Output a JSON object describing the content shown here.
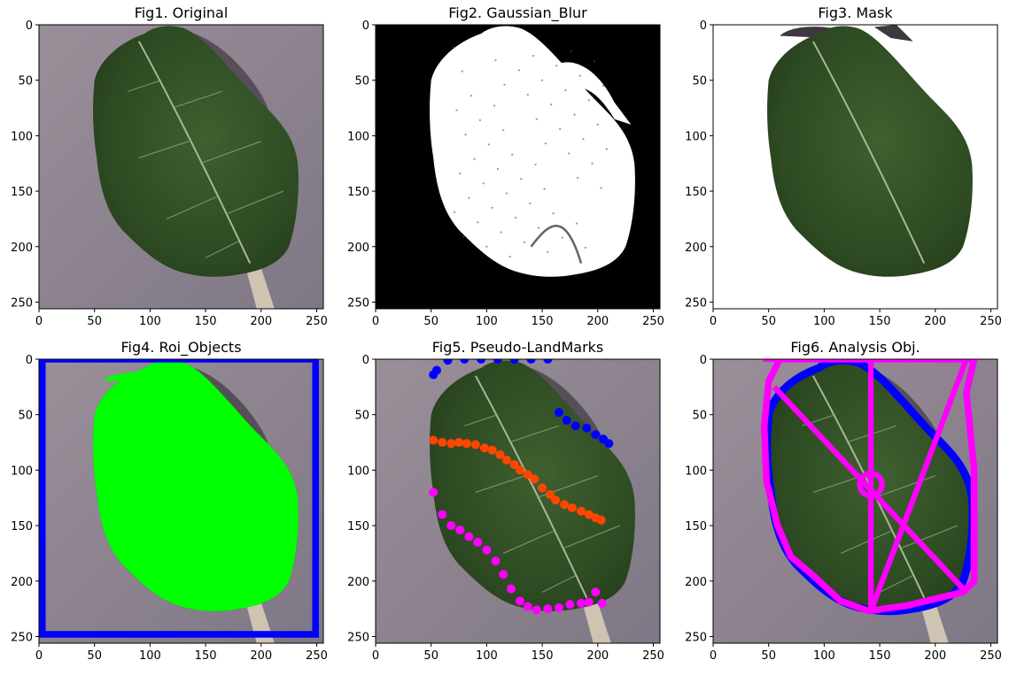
{
  "colors": {
    "leaf_dark": "#2f4a22",
    "leaf_mid": "#3f5f2c",
    "background_gray": "#8e8594",
    "stem": "#cfc3b2",
    "white": "#ffffff",
    "black": "#000000",
    "roi_green": "#00ff00",
    "roi_blue": "#0000ff",
    "landmark_blue": "#0000ff",
    "landmark_orange": "#ff4500",
    "landmark_magenta": "#ff00ff",
    "analysis_magenta": "#ff00ff"
  },
  "chart_data": [
    {
      "type": "image",
      "title": "Fig1. Original",
      "xlim": [
        0,
        256
      ],
      "ylim": [
        256,
        0
      ],
      "xticks": [
        0,
        50,
        100,
        150,
        200,
        250
      ],
      "yticks": [
        0,
        50,
        100,
        150,
        200,
        250
      ],
      "content": "photo"
    },
    {
      "type": "image",
      "title": "Fig2. Gaussian_Blur",
      "xlim": [
        0,
        256
      ],
      "ylim": [
        256,
        0
      ],
      "xticks": [
        0,
        50,
        100,
        150,
        200,
        250
      ],
      "yticks": [
        0,
        50,
        100,
        150,
        200,
        250
      ],
      "content": "binary"
    },
    {
      "type": "image",
      "title": "Fig3. Mask",
      "xlim": [
        0,
        256
      ],
      "ylim": [
        256,
        0
      ],
      "xticks": [
        0,
        50,
        100,
        150,
        200,
        250
      ],
      "yticks": [
        0,
        50,
        100,
        150,
        200,
        250
      ],
      "content": "masked"
    },
    {
      "type": "image",
      "title": "Fig4. Roi_Objects",
      "xlim": [
        0,
        256
      ],
      "ylim": [
        256,
        0
      ],
      "xticks": [
        0,
        50,
        100,
        150,
        200,
        250
      ],
      "yticks": [
        0,
        50,
        100,
        150,
        200,
        250
      ],
      "content": "roi",
      "roi_rect": [
        3,
        0,
        249,
        248
      ]
    },
    {
      "type": "image",
      "title": "Fig5. Pseudo-LandMarks",
      "xlim": [
        0,
        256
      ],
      "ylim": [
        256,
        0
      ],
      "xticks": [
        0,
        50,
        100,
        150,
        200,
        250
      ],
      "yticks": [
        0,
        50,
        100,
        150,
        200,
        250
      ],
      "content": "landmarks",
      "top_landmarks": [
        [
          52,
          14
        ],
        [
          55,
          10
        ],
        [
          65,
          1
        ],
        [
          80,
          0
        ],
        [
          95,
          0
        ],
        [
          110,
          0
        ],
        [
          125,
          0
        ],
        [
          140,
          0
        ],
        [
          155,
          0
        ],
        [
          165,
          48
        ],
        [
          172,
          55
        ],
        [
          180,
          60
        ],
        [
          190,
          62
        ],
        [
          198,
          68
        ],
        [
          205,
          72
        ],
        [
          210,
          76
        ]
      ],
      "middle_landmarks": [
        [
          52,
          73
        ],
        [
          60,
          75
        ],
        [
          68,
          76
        ],
        [
          75,
          75
        ],
        [
          82,
          76
        ],
        [
          90,
          77
        ],
        [
          98,
          80
        ],
        [
          105,
          82
        ],
        [
          112,
          86
        ],
        [
          118,
          91
        ],
        [
          125,
          95
        ],
        [
          130,
          100
        ],
        [
          137,
          104
        ],
        [
          143,
          108
        ],
        [
          150,
          116
        ],
        [
          157,
          122
        ],
        [
          162,
          127
        ],
        [
          170,
          131
        ],
        [
          177,
          134
        ],
        [
          185,
          137
        ],
        [
          192,
          140
        ],
        [
          198,
          143
        ],
        [
          203,
          145
        ]
      ],
      "bottom_landmarks": [
        [
          52,
          120
        ],
        [
          60,
          140
        ],
        [
          68,
          150
        ],
        [
          76,
          154
        ],
        [
          84,
          160
        ],
        [
          92,
          165
        ],
        [
          100,
          172
        ],
        [
          108,
          182
        ],
        [
          115,
          194
        ],
        [
          122,
          207
        ],
        [
          130,
          218
        ],
        [
          137,
          223
        ],
        [
          145,
          226
        ],
        [
          155,
          225
        ],
        [
          165,
          224
        ],
        [
          175,
          221
        ],
        [
          185,
          220
        ],
        [
          192,
          219
        ],
        [
          198,
          210
        ],
        [
          204,
          220
        ]
      ]
    },
    {
      "type": "image",
      "title": "Fig6. Analysis Obj.",
      "xlim": [
        0,
        256
      ],
      "ylim": [
        256,
        0
      ],
      "xticks": [
        0,
        50,
        100,
        150,
        200,
        250
      ],
      "yticks": [
        0,
        50,
        100,
        150,
        200,
        250
      ],
      "content": "analysis",
      "hull": [
        [
          60,
          0
        ],
        [
          235,
          0
        ],
        [
          228,
          30
        ],
        [
          235,
          100
        ],
        [
          235,
          200
        ],
        [
          225,
          210
        ],
        [
          175,
          222
        ],
        [
          140,
          227
        ],
        [
          115,
          218
        ],
        [
          90,
          195
        ],
        [
          70,
          178
        ],
        [
          58,
          150
        ],
        [
          48,
          110
        ],
        [
          46,
          60
        ],
        [
          50,
          20
        ]
      ],
      "center": [
        142,
        113
      ],
      "lines": [
        [
          [
            142,
            0
          ],
          [
            142,
            227
          ]
        ],
        [
          [
            55,
            25
          ],
          [
            228,
            210
          ]
        ],
        [
          [
            142,
            227
          ],
          [
            228,
            0
          ]
        ]
      ]
    }
  ]
}
